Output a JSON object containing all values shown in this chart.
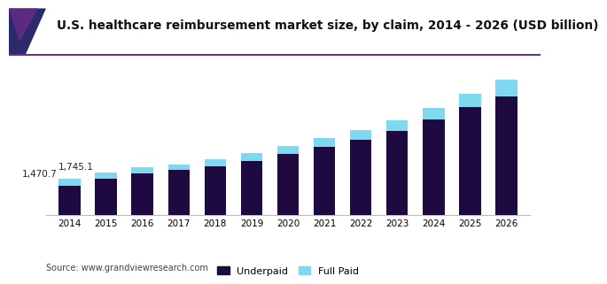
{
  "title": "U.S. healthcare reimbursement market size, by claim, 2014 - 2026 (USD billion)",
  "years": [
    2014,
    2015,
    2016,
    2017,
    2018,
    2019,
    2020,
    2021,
    2022,
    2023,
    2024,
    2025,
    2026
  ],
  "underpaid": [
    1200,
    1490,
    1700,
    1820,
    1980,
    2200,
    2480,
    2760,
    3060,
    3400,
    3850,
    4350,
    4800
  ],
  "full_paid": [
    270,
    255,
    240,
    235,
    280,
    320,
    320,
    360,
    390,
    430,
    490,
    560,
    680
  ],
  "annotations": [
    {
      "year_idx": 0,
      "text": "1,470.7"
    },
    {
      "year_idx": 1,
      "text": "1,745.1"
    }
  ],
  "underpaid_color": "#1e0a40",
  "full_paid_color": "#7dd8f0",
  "background_color": "#ffffff",
  "legend_labels": [
    "Underpaid",
    "Full Paid"
  ],
  "source_text": "Source: www.grandviewresearch.com",
  "title_accent_purple": "#5b2b82",
  "title_accent_dark": "#2b2b6b",
  "title_line_color": "#6a3099",
  "bar_width": 0.6,
  "ylim_max": 6200,
  "title_fontsize": 9.8,
  "annotation_fontsize": 7.5,
  "tick_fontsize": 7.5,
  "legend_fontsize": 8.0,
  "source_fontsize": 7.0
}
